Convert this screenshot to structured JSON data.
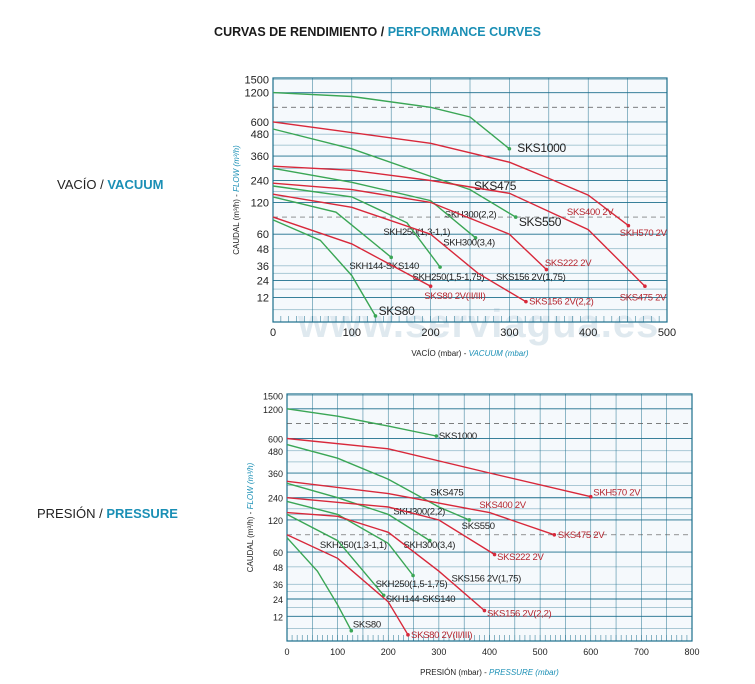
{
  "title": {
    "es": "CURVAS DE RENDIMIENTO",
    "sep": " / ",
    "en": "PERFORMANCE CURVES"
  },
  "watermark": "www.serviagua.es",
  "colors": {
    "green": "#3aa655",
    "red": "#d8283a",
    "grid": "#1c6e8c",
    "accent": "#1a8fb5"
  },
  "chart_data": [
    {
      "type": "line",
      "section_label": {
        "es": "VACÍO",
        "sep": " / ",
        "en": "VACUUM"
      },
      "xlabel": {
        "es": "VACÍO (mbar) - ",
        "en": "VACUUM (mbar)"
      },
      "ylabel": {
        "es": "CAUDAL (m³/h) - ",
        "en": "FLOW (m³/h)"
      },
      "xlim": [
        0,
        500
      ],
      "xticks": [
        0,
        100,
        200,
        300,
        400,
        500
      ],
      "yticks": [
        1500,
        1200,
        600,
        480,
        360,
        240,
        120,
        60,
        48,
        36,
        24,
        12
      ],
      "grid": true,
      "series": [
        {
          "name": "SKS1000",
          "color": "green",
          "points": [
            [
              0,
              1200
            ],
            [
              100,
              1120
            ],
            [
              200,
              900
            ],
            [
              250,
              700
            ],
            [
              300,
              400
            ]
          ],
          "label_at": [
            310,
            400
          ]
        },
        {
          "name": "SKH570 2V",
          "color": "red",
          "points": [
            [
              0,
              600
            ],
            [
              200,
              430
            ],
            [
              300,
              330
            ],
            [
              350,
              250
            ],
            [
              400,
              160
            ],
            [
              451,
              75
            ]
          ],
          "label_at": [
            440,
            62
          ]
        },
        {
          "name": "SKS475",
          "color": "green",
          "points": [
            [
              0,
              530
            ],
            [
              100,
              400
            ],
            [
              200,
              260
            ],
            [
              250,
              190
            ],
            [
              308,
              90
            ]
          ],
          "label_at": [
            255,
            205
          ]
        },
        {
          "name": "SKS550",
          "color": "",
          "points": [],
          "label_at": [
            312,
            80
          ]
        },
        {
          "name": "SKS400 2V",
          "color": "red",
          "points": [],
          "label_at": [
            373,
            100
          ]
        },
        {
          "name": "SKS475 2V",
          "color": "red",
          "points": [
            [
              0,
              310
            ],
            [
              100,
              290
            ],
            [
              200,
              240
            ],
            [
              300,
              170
            ],
            [
              400,
              68
            ],
            [
              472,
              20
            ]
          ],
          "label_at": [
            440,
            12
          ]
        },
        {
          "name": "SKH300(2,2)",
          "color": "",
          "points": [],
          "label_at": [
            218,
            95
          ]
        },
        {
          "name": "SKH300(3,4)",
          "color": "green",
          "points": [
            [
              0,
              300
            ],
            [
              100,
              230
            ],
            [
              200,
              130
            ],
            [
              257,
              57
            ]
          ],
          "label_at": [
            216,
            53
          ]
        },
        {
          "name": "SKS222 2V",
          "color": "red",
          "points": [
            [
              0,
              225
            ],
            [
              100,
              190
            ],
            [
              200,
              120
            ],
            [
              300,
              60
            ],
            [
              347,
              33
            ]
          ],
          "label_at": [
            345,
            38
          ]
        },
        {
          "name": "SKH250(1,3-1,1)",
          "color": "",
          "points": [],
          "label_at": [
            140,
            64
          ]
        },
        {
          "name": "SKH250(1,5-1,75)",
          "color": "green",
          "points": [
            [
              0,
              210
            ],
            [
              100,
              150
            ],
            [
              170,
              80
            ],
            [
              212,
              35
            ]
          ],
          "label_at": [
            177,
            27
          ]
        },
        {
          "name": "SKH144-SKS140",
          "color": "green",
          "points": [
            [
              0,
              150
            ],
            [
              80,
              100
            ],
            [
              150,
              42
            ]
          ],
          "label_at": [
            97,
            36
          ]
        },
        {
          "name": "SKS156 2V(1,75)",
          "color": "",
          "points": [],
          "label_at": [
            283,
            27
          ]
        },
        {
          "name": "SKS156 2V(2,2)",
          "color": "red",
          "points": [
            [
              0,
              165
            ],
            [
              100,
              110
            ],
            [
              200,
              60
            ],
            [
              260,
              30
            ],
            [
              321,
              10
            ]
          ],
          "label_at": [
            325,
            10
          ]
        },
        {
          "name": "SKS80 2V(II/III)",
          "color": "red",
          "points": [
            [
              0,
              90
            ],
            [
              100,
              52
            ],
            [
              200,
              20
            ]
          ],
          "label_at": [
            192,
            13
          ]
        },
        {
          "name": "SKS80",
          "color": "green",
          "points": [
            [
              0,
              85
            ],
            [
              60,
              55
            ],
            [
              100,
              28
            ],
            [
              130,
              3
            ]
          ],
          "label_at": [
            134,
            5
          ]
        }
      ]
    },
    {
      "type": "line",
      "section_label": {
        "es": "PRESIÓN",
        "sep": " / ",
        "en": "PRESSURE"
      },
      "xlabel": {
        "es": "PRESIÓN (mbar) - ",
        "en": "PRESSURE (mbar)"
      },
      "ylabel": {
        "es": "CAUDAL (m³/h) - ",
        "en": "FLOW (m³/h)"
      },
      "xlim": [
        0,
        800
      ],
      "xticks": [
        0,
        100,
        200,
        300,
        400,
        500,
        600,
        700,
        800
      ],
      "yticks": [
        1500,
        1200,
        600,
        480,
        360,
        240,
        120,
        60,
        48,
        36,
        24,
        12
      ],
      "grid": true,
      "series": [
        {
          "name": "SKS1000",
          "color": "green",
          "points": [
            [
              0,
              1200
            ],
            [
              100,
              1050
            ],
            [
              200,
              850
            ],
            [
              295,
              650
            ]
          ],
          "label_at": [
            300,
            650
          ]
        },
        {
          "name": "SKH570 2V",
          "color": "red",
          "points": [
            [
              0,
              600
            ],
            [
              200,
              500
            ],
            [
              400,
              360
            ],
            [
              600,
              245
            ]
          ],
          "label_at": [
            605,
            265
          ]
        },
        {
          "name": "SKS475",
          "color": "green",
          "points": [
            [
              0,
              540
            ],
            [
              100,
              440
            ],
            [
              200,
              330
            ],
            [
              300,
              190
            ],
            [
              360,
              120
            ]
          ],
          "label_at": [
            283,
            265
          ]
        },
        {
          "name": "SKS550",
          "color": "",
          "points": [],
          "label_at": [
            345,
            108
          ]
        },
        {
          "name": "SKS400 2V",
          "color": "red",
          "points": [],
          "label_at": [
            380,
            200
          ]
        },
        {
          "name": "SKS475 2V",
          "color": "red",
          "points": [
            [
              0,
              320
            ],
            [
              200,
              260
            ],
            [
              400,
              160
            ],
            [
              528,
              90
            ]
          ],
          "label_at": [
            535,
            90
          ]
        },
        {
          "name": "SKH300(2,2)",
          "color": "",
          "points": [],
          "label_at": [
            210,
            165
          ]
        },
        {
          "name": "SKH300(3,4)",
          "color": "green",
          "points": [
            [
              0,
              310
            ],
            [
              100,
              240
            ],
            [
              200,
              150
            ],
            [
              282,
              80
            ]
          ],
          "label_at": [
            230,
            72
          ]
        },
        {
          "name": "SKS222 2V",
          "color": "red",
          "points": [
            [
              0,
              240
            ],
            [
              200,
              190
            ],
            [
              300,
              120
            ],
            [
              410,
              58
            ]
          ],
          "label_at": [
            415,
            56
          ]
        },
        {
          "name": "SKH250(1,3-1,1)",
          "color": "",
          "points": [],
          "label_at": [
            65,
            72
          ]
        },
        {
          "name": "SKH250(1,5-1,75)",
          "color": "green",
          "points": [
            [
              0,
              220
            ],
            [
              100,
              150
            ],
            [
              200,
              75
            ],
            [
              249,
              42
            ]
          ],
          "label_at": [
            175,
            36
          ]
        },
        {
          "name": "SKS156 2V(1,75)",
          "color": "",
          "points": [],
          "label_at": [
            325,
            40
          ]
        },
        {
          "name": "SKH144-SKS140",
          "color": "green",
          "points": [
            [
              0,
              150
            ],
            [
              100,
              80
            ],
            [
              191,
              27
            ]
          ],
          "label_at": [
            195,
            24
          ]
        },
        {
          "name": "SKS156 2V(2,2)",
          "color": "red",
          "points": [
            [
              0,
              160
            ],
            [
              100,
              140
            ],
            [
              200,
              95
            ],
            [
              300,
              45
            ],
            [
              390,
              16
            ]
          ],
          "label_at": [
            395,
            14
          ]
        },
        {
          "name": "SKS80",
          "color": "green",
          "points": [
            [
              0,
              85
            ],
            [
              60,
              45
            ],
            [
              100,
              20
            ],
            [
              127,
              5
            ]
          ],
          "label_at": [
            130,
            8
          ]
        },
        {
          "name": "SKS80 2V(II/III)",
          "color": "red",
          "points": [
            [
              0,
              90
            ],
            [
              100,
              55
            ],
            [
              200,
              22
            ],
            [
              239,
              3
            ]
          ],
          "label_at": [
            245,
            3
          ]
        }
      ]
    }
  ]
}
